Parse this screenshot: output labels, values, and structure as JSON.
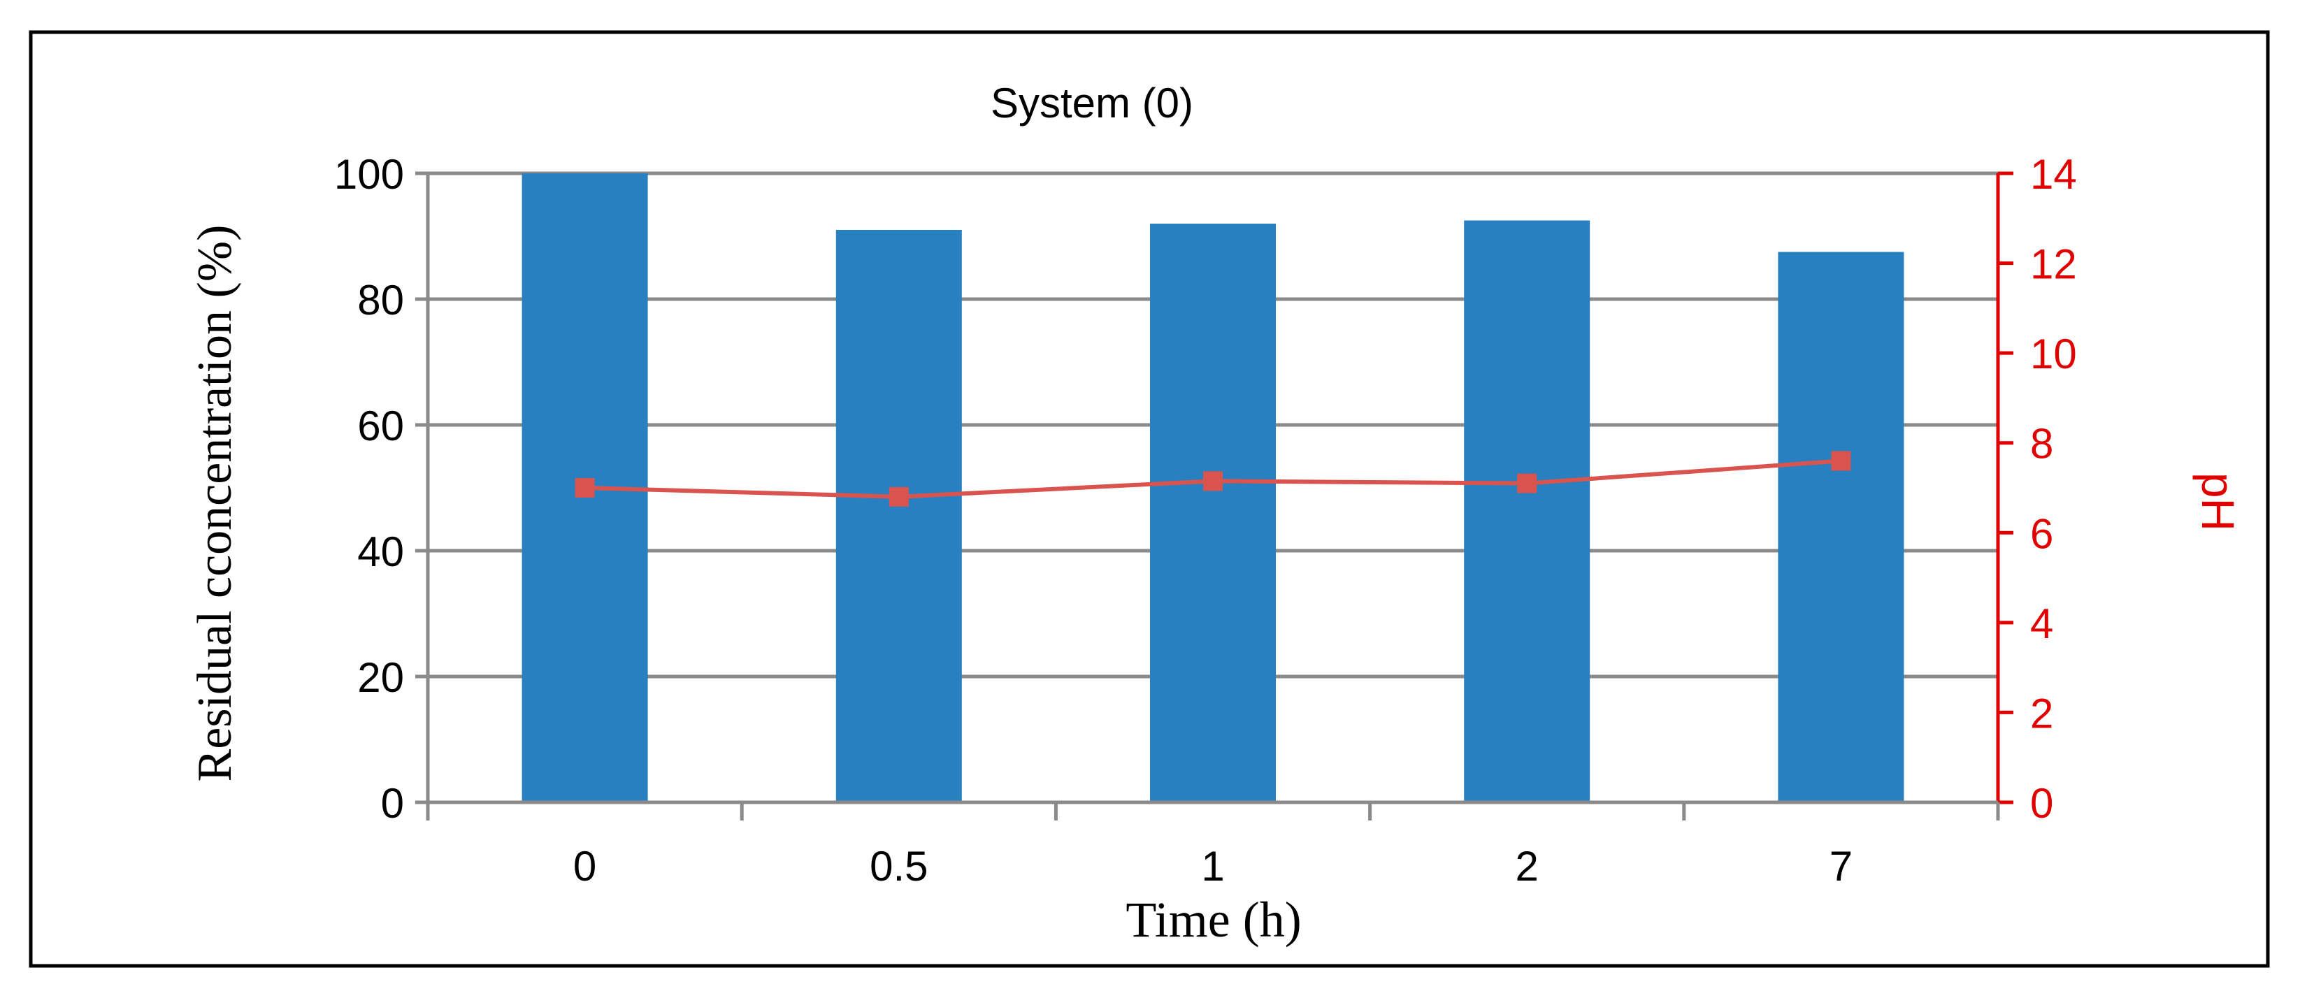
{
  "chart_data": {
    "type": "bar",
    "title": "System (0)",
    "xlabel": "Time (h)",
    "ylabel": "Residual cconcentration (%)",
    "y2label": "pH",
    "categories": [
      "0",
      "0.5",
      "1",
      "2",
      "7"
    ],
    "ylim": [
      0,
      100
    ],
    "y2lim": [
      0,
      14
    ],
    "yticks": [
      "0",
      "20",
      "40",
      "60",
      "80",
      "100"
    ],
    "y2ticks": [
      "0",
      "2",
      "4",
      "6",
      "8",
      "10",
      "12",
      "14"
    ],
    "grid": true,
    "legend": "none",
    "series": [
      {
        "type": "bar",
        "axis": "left",
        "values": [
          100,
          91,
          92,
          92.5,
          87.5
        ]
      },
      {
        "type": "line",
        "axis": "right",
        "marker": "square",
        "values": [
          7.0,
          6.8,
          7.15,
          7.1,
          7.6
        ]
      }
    ],
    "colors": {
      "bar": "#2980c0",
      "line": "#d9534f",
      "right_axis": "#e00000",
      "grid": "#8a8a8a",
      "frame": "#000000"
    }
  }
}
